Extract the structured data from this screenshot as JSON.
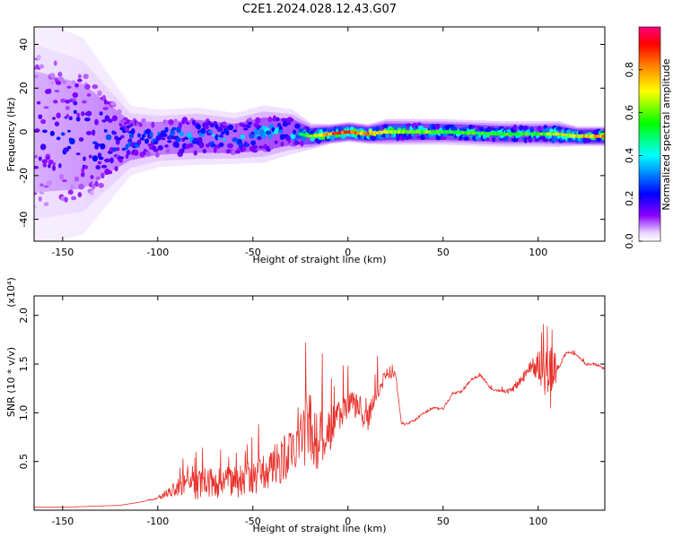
{
  "title": "C2E1.2024.028.12.43.G07",
  "chart_data": [
    {
      "type": "heatmap",
      "xlabel": "Height of straight line (km)",
      "ylabel": "Frequency (Hz)",
      "xlim": [
        -165,
        135
      ],
      "ylim": [
        -50,
        48
      ],
      "xticks": [
        -150,
        -100,
        -50,
        0,
        50,
        100
      ],
      "yticks": [
        -40,
        -20,
        0,
        20,
        40
      ],
      "colorbar": {
        "label": "Normalized spectral amplitude",
        "range": [
          0.0,
          1.0
        ],
        "ticks": [
          0.0,
          0.2,
          0.4,
          0.6,
          0.8
        ],
        "colors": [
          "#ffffff",
          "#8b00ff",
          "#0000ff",
          "#00ffff",
          "#00ff00",
          "#ffff00",
          "#ff8000",
          "#ff0000",
          "#ff0080"
        ]
      },
      "trace": [
        {
          "x": -165,
          "f": 0,
          "spread": 35,
          "amp": 0.25
        },
        {
          "x": -140,
          "f": -2,
          "spread": 30,
          "amp": 0.3
        },
        {
          "x": -115,
          "f": -4,
          "spread": 10,
          "amp": 0.35
        },
        {
          "x": -100,
          "f": -3,
          "spread": 8,
          "amp": 0.35
        },
        {
          "x": -80,
          "f": -2,
          "spread": 8,
          "amp": 0.4
        },
        {
          "x": -60,
          "f": -3,
          "spread": 7,
          "amp": 0.4
        },
        {
          "x": -45,
          "f": -1,
          "spread": 8,
          "amp": 0.45
        },
        {
          "x": -30,
          "f": 0,
          "spread": 6,
          "amp": 0.45
        },
        {
          "x": -20,
          "f": -2,
          "spread": 3,
          "amp": 0.6
        },
        {
          "x": -10,
          "f": -1,
          "spread": 2,
          "amp": 0.8
        },
        {
          "x": 0,
          "f": 0,
          "spread": 2,
          "amp": 0.85
        },
        {
          "x": 10,
          "f": -1,
          "spread": 2,
          "amp": 0.75
        },
        {
          "x": 20,
          "f": 0,
          "spread": 3,
          "amp": 0.65
        },
        {
          "x": 50,
          "f": 0,
          "spread": 3,
          "amp": 0.55
        },
        {
          "x": 80,
          "f": -1,
          "spread": 3,
          "amp": 0.55
        },
        {
          "x": 100,
          "f": -1,
          "spread": 3,
          "amp": 0.55
        },
        {
          "x": 110,
          "f": -1,
          "spread": 3,
          "amp": 0.65
        },
        {
          "x": 120,
          "f": -2,
          "spread": 2,
          "amp": 0.7
        },
        {
          "x": 135,
          "f": -2,
          "spread": 2,
          "amp": 0.75
        }
      ]
    },
    {
      "type": "line",
      "xlabel": "Height of straight line (km)",
      "ylabel": "SNR (10 * v/v)",
      "y_scale_label": "(x10⁴)",
      "xlim": [
        -165,
        135
      ],
      "ylim": [
        0,
        2.2
      ],
      "xticks": [
        -150,
        -100,
        -50,
        0,
        50,
        100
      ],
      "yticks": [
        0.5,
        1.0,
        1.5,
        2.0
      ],
      "series": [
        {
          "color": "#e8312b",
          "x": [
            -165,
            -150,
            -135,
            -120,
            -110,
            -100,
            -95,
            -90,
            -85,
            -80,
            -75,
            -70,
            -65,
            -60,
            -55,
            -50,
            -45,
            -40,
            -35,
            -30,
            -25,
            -20,
            -15,
            -10,
            -5,
            0,
            5,
            10,
            15,
            20,
            25,
            28,
            30,
            35,
            40,
            45,
            50,
            55,
            60,
            65,
            70,
            75,
            80,
            85,
            90,
            95,
            100,
            105,
            108,
            110,
            115,
            120,
            125,
            130,
            135
          ],
          "y": [
            0.03,
            0.03,
            0.04,
            0.05,
            0.08,
            0.12,
            0.18,
            0.22,
            0.28,
            0.25,
            0.3,
            0.27,
            0.3,
            0.28,
            0.32,
            0.33,
            0.38,
            0.45,
            0.5,
            0.6,
            0.75,
            0.85,
            0.7,
            0.75,
            1.0,
            1.05,
            1.1,
            0.9,
            1.2,
            1.4,
            1.4,
            0.9,
            0.88,
            0.92,
            1.0,
            1.05,
            1.04,
            1.2,
            1.22,
            1.35,
            1.38,
            1.25,
            1.22,
            1.22,
            1.3,
            1.45,
            1.5,
            1.4,
            1.3,
            1.45,
            1.62,
            1.6,
            1.5,
            1.5,
            1.45
          ],
          "noise": [
            0,
            0,
            0,
            0,
            0,
            0.02,
            0.08,
            0.15,
            0.2,
            0.25,
            0.25,
            0.25,
            0.28,
            0.28,
            0.3,
            0.3,
            0.32,
            0.35,
            0.38,
            0.5,
            0.6,
            0.65,
            0.55,
            0.5,
            0.3,
            0.25,
            0.25,
            0.2,
            0.2,
            0.1,
            0.05,
            0.02,
            0.02,
            0.02,
            0.02,
            0.02,
            0.02,
            0.02,
            0.02,
            0.02,
            0.02,
            0.02,
            0.02,
            0.05,
            0.08,
            0.12,
            0.25,
            0.5,
            0.6,
            0.05,
            0.02,
            0.02,
            0.02,
            0.02,
            0.02
          ]
        }
      ]
    }
  ]
}
